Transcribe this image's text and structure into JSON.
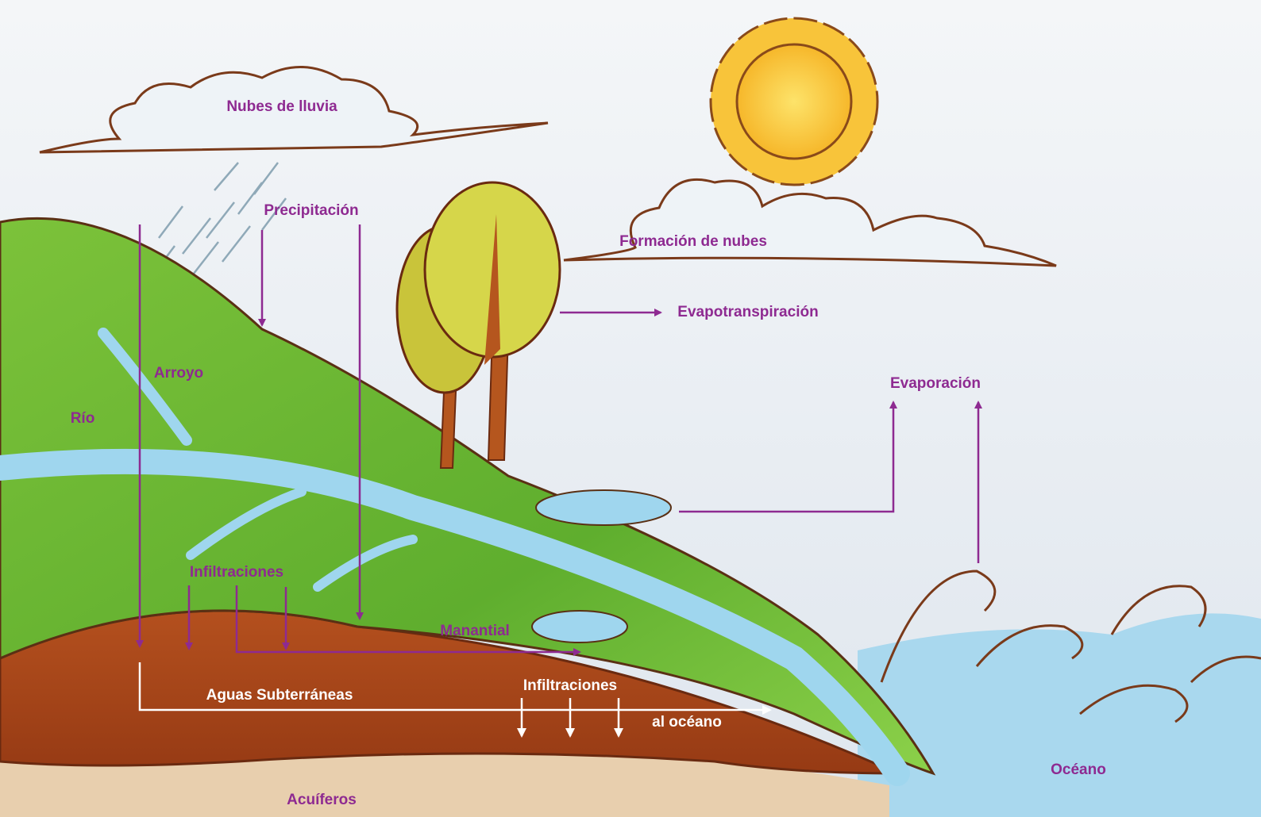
{
  "labels": {
    "rain_clouds": "Nubes de lluvia",
    "precipitation": "Precipitación",
    "cloud_formation": "Formación de nubes",
    "evapotranspiration": "Evapotranspiración",
    "evaporation": "Evaporación",
    "stream": "Arroyo",
    "river": "Río",
    "infiltration_upper": "Infiltraciones",
    "spring": "Manantial",
    "groundwater": "Aguas Subterráneas",
    "infiltration_lower": "Infiltraciones",
    "to_ocean": "al océano",
    "aquifers": "Acuíferos",
    "ocean": "Océano"
  }
}
